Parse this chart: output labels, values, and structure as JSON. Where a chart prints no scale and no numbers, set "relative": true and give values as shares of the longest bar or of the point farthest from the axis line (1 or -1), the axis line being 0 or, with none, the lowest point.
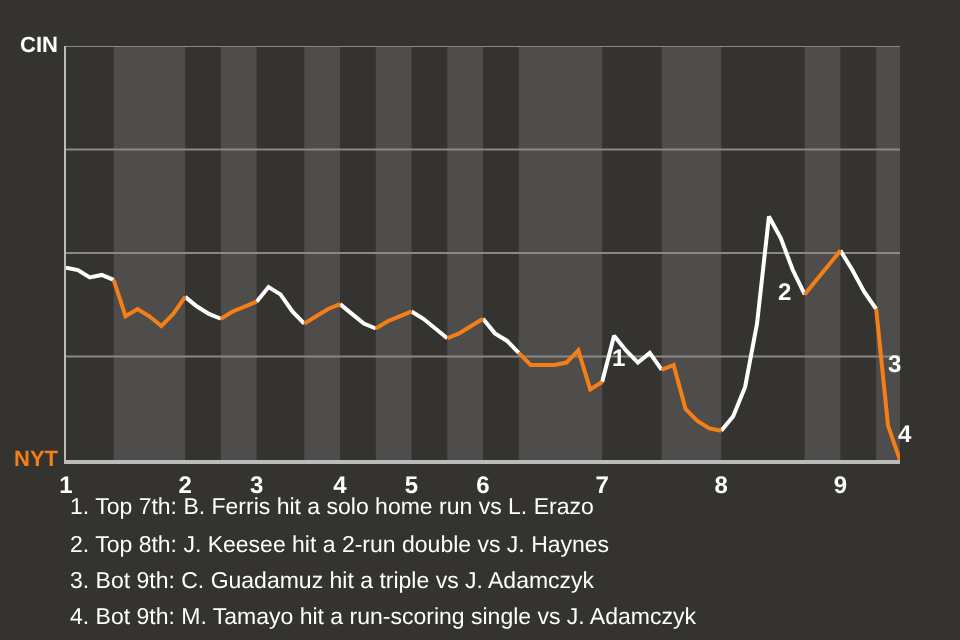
{
  "chart_data": {
    "type": "line",
    "relative": true,
    "categories": [
      "1",
      null,
      null,
      null,
      null,
      null,
      null,
      null,
      null,
      null,
      "2",
      null,
      null,
      null,
      null,
      null,
      "3",
      null,
      null,
      null,
      null,
      null,
      null,
      "4",
      null,
      null,
      null,
      null,
      null,
      "5",
      null,
      null,
      null,
      null,
      null,
      "6",
      null,
      null,
      null,
      null,
      null,
      null,
      null,
      null,
      null,
      "7",
      null,
      null,
      null,
      null,
      null,
      null,
      null,
      null,
      null,
      "8",
      null,
      null,
      null,
      null,
      null,
      null,
      null,
      null,
      null,
      "9",
      null,
      null,
      null,
      null,
      null
    ],
    "marker": "none",
    "line_style": "solid",
    "ref_lines": [
      {
        "axis": "y",
        "value": 0.425,
        "color": "#8a8886"
      },
      {
        "axis": "y",
        "value": 0.85,
        "color": "#8a8886"
      },
      {
        "axis": "y",
        "value": 1.275,
        "color": "#8a8886"
      },
      {
        "axis": "y",
        "value": 1.7,
        "color": "#8a8886"
      }
    ],
    "series": [
      {
        "color": "#ffffff",
        "values": [
          0.79,
          0.78,
          0.75,
          0.76,
          0.74,
          null,
          null,
          null,
          null,
          null,
          0.67,
          0.63,
          0.6,
          0.58,
          null,
          null,
          0.65,
          0.71,
          0.68,
          0.61,
          0.56,
          null,
          null,
          0.64,
          0.6,
          0.56,
          0.54,
          null,
          null,
          0.61,
          0.58,
          0.54,
          0.5,
          null,
          null,
          0.58,
          0.52,
          0.49,
          0.44,
          null,
          null,
          null,
          null,
          null,
          null,
          0.32,
          0.51,
          0.45,
          0.4,
          0.44,
          0.37,
          null,
          null,
          null,
          null,
          0.12,
          0.18,
          0.3,
          0.56,
          1,
          0.91,
          0.78,
          0.68,
          null,
          null,
          0.86,
          0.78,
          0.69,
          0.62,
          null,
          null
        ]
      },
      {
        "color": "#f57f17",
        "values": [
          null,
          null,
          null,
          null,
          0.74,
          0.59,
          0.62,
          0.59,
          0.55,
          0.6,
          0.67,
          null,
          null,
          0.58,
          0.61,
          0.63,
          0.65,
          null,
          null,
          null,
          0.56,
          0.59,
          0.62,
          0.64,
          null,
          null,
          0.54,
          0.57,
          0.59,
          0.61,
          null,
          null,
          0.5,
          0.52,
          0.55,
          0.58,
          null,
          null,
          0.44,
          0.39,
          0.39,
          0.39,
          0.4,
          0.45,
          0.29,
          0.32,
          null,
          null,
          null,
          null,
          0.37,
          0.39,
          0.21,
          0.16,
          0.13,
          0.12,
          null,
          null,
          null,
          null,
          null,
          null,
          0.68,
          0.74,
          0.8,
          0.86,
          null,
          null,
          0.62,
          0.14,
          0
        ]
      }
    ],
    "annotations": [
      "CIN",
      "NYT",
      "1",
      "2",
      "3",
      "4",
      "1. Top 7th: B. Ferris hit a solo home run vs L. Erazo",
      "2. Top 8th: J. Keesee hit a 2-run double vs J. Haynes",
      "3. Bot 9th: C. Guadamuz hit a triple vs J. Adamczyk",
      "4. Bot 9th: M. Tamayo hit a run-scoring single vs J. Adamczyk"
    ]
  }
}
